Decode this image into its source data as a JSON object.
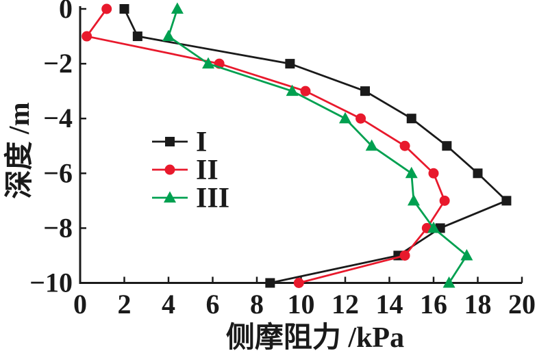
{
  "figure": {
    "background": "#ffffff",
    "text_color": "#1a1a1a",
    "axis_color": "#1a1a1a"
  },
  "chart_data": {
    "type": "line",
    "title": "",
    "xlabel": "侧摩阻力 /kPa",
    "ylabel": "深度 /m",
    "xlim": [
      0,
      20
    ],
    "ylim": [
      -10,
      0
    ],
    "xticks": [
      0,
      2,
      4,
      6,
      8,
      10,
      12,
      14,
      16,
      18,
      20
    ],
    "yticks": [
      0,
      -2,
      -4,
      -6,
      -8,
      -10
    ],
    "grid": false,
    "legend_position": "inside-middle-left",
    "depths": [
      0,
      -1,
      -2,
      -3,
      -4,
      -5,
      -6,
      -7,
      -8,
      -9,
      -10
    ],
    "series": [
      {
        "name": "I",
        "marker": "square",
        "color": "#1a1a1a",
        "values": [
          2.0,
          2.6,
          9.5,
          12.9,
          15.0,
          16.6,
          18.0,
          19.3,
          16.3,
          14.4,
          8.6
        ]
      },
      {
        "name": "II",
        "marker": "circle",
        "color": "#e8192c",
        "values": [
          1.2,
          0.3,
          6.3,
          10.2,
          12.7,
          14.7,
          16.0,
          16.5,
          15.7,
          14.7,
          9.9
        ]
      },
      {
        "name": "III",
        "marker": "triangle",
        "color": "#00a050",
        "values": [
          4.4,
          4.0,
          5.8,
          9.6,
          12.0,
          13.2,
          15.0,
          15.1,
          16.0,
          17.5,
          16.7
        ]
      }
    ]
  }
}
